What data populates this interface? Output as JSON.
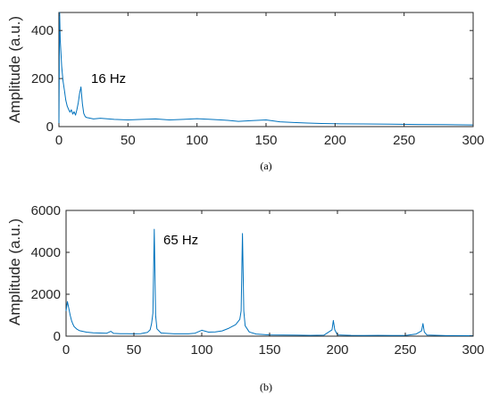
{
  "style": {
    "line_color": "#0072bd",
    "axis_color": "#262626",
    "background": "#ffffff"
  },
  "chart_data": [
    {
      "panel": "(a)",
      "type": "line",
      "title": "",
      "xlabel": "",
      "ylabel": "Amplitude (a.u.)",
      "xlim": [
        0,
        300
      ],
      "ylim": [
        0,
        475
      ],
      "xticks": [
        0,
        50,
        100,
        150,
        200,
        250,
        300
      ],
      "yticks": [
        0,
        200,
        400
      ],
      "grid": false,
      "annotations": [
        {
          "text": "16 Hz",
          "x": 20,
          "y": 195
        }
      ],
      "series": [
        {
          "points": [
            [
              0,
              0
            ],
            [
              0.5,
              475
            ],
            [
              1,
              360
            ],
            [
              2,
              250
            ],
            [
              3,
              190
            ],
            [
              4,
              150
            ],
            [
              5,
              110
            ],
            [
              6,
              85
            ],
            [
              7,
              72
            ],
            [
              8,
              60
            ],
            [
              9,
              70
            ],
            [
              10,
              52
            ],
            [
              11,
              62
            ],
            [
              12,
              48
            ],
            [
              13,
              70
            ],
            [
              14,
              100
            ],
            [
              15,
              140
            ],
            [
              16,
              165
            ],
            [
              17,
              95
            ],
            [
              18,
              55
            ],
            [
              19,
              42
            ],
            [
              20,
              38
            ],
            [
              25,
              32
            ],
            [
              30,
              35
            ],
            [
              40,
              30
            ],
            [
              50,
              28
            ],
            [
              60,
              30
            ],
            [
              70,
              32
            ],
            [
              80,
              28
            ],
            [
              90,
              30
            ],
            [
              100,
              33
            ],
            [
              110,
              30
            ],
            [
              120,
              27
            ],
            [
              130,
              22
            ],
            [
              140,
              25
            ],
            [
              150,
              28
            ],
            [
              160,
              20
            ],
            [
              170,
              17
            ],
            [
              180,
              15
            ],
            [
              190,
              13
            ],
            [
              200,
              12
            ],
            [
              220,
              11
            ],
            [
              240,
              10
            ],
            [
              260,
              9
            ],
            [
              280,
              8
            ],
            [
              300,
              7
            ]
          ]
        }
      ]
    },
    {
      "panel": "(b)",
      "type": "line",
      "title": "",
      "xlabel": "",
      "ylabel": "Amplitude (a.u.)",
      "xlim": [
        0,
        300
      ],
      "ylim": [
        0,
        6000
      ],
      "xticks": [
        0,
        50,
        100,
        150,
        200,
        250,
        300
      ],
      "yticks": [
        0,
        2000,
        4000,
        6000
      ],
      "grid": false,
      "annotations": [
        {
          "text": "65 Hz",
          "x": 70,
          "y": 4500
        }
      ],
      "series": [
        {
          "points": [
            [
              0,
              1200
            ],
            [
              1,
              1650
            ],
            [
              2,
              1350
            ],
            [
              3,
              1000
            ],
            [
              4,
              750
            ],
            [
              5,
              580
            ],
            [
              6,
              450
            ],
            [
              8,
              330
            ],
            [
              10,
              260
            ],
            [
              15,
              190
            ],
            [
              20,
              160
            ],
            [
              25,
              150
            ],
            [
              30,
              140
            ],
            [
              33,
              230
            ],
            [
              35,
              130
            ],
            [
              40,
              120
            ],
            [
              45,
              115
            ],
            [
              50,
              110
            ],
            [
              55,
              120
            ],
            [
              60,
              180
            ],
            [
              62,
              300
            ],
            [
              63,
              600
            ],
            [
              64,
              1100
            ],
            [
              65,
              5100
            ],
            [
              66,
              1000
            ],
            [
              67,
              350
            ],
            [
              70,
              150
            ],
            [
              80,
              110
            ],
            [
              90,
              110
            ],
            [
              95,
              140
            ],
            [
              100,
              280
            ],
            [
              105,
              190
            ],
            [
              110,
              200
            ],
            [
              115,
              250
            ],
            [
              120,
              380
            ],
            [
              125,
              550
            ],
            [
              128,
              800
            ],
            [
              129,
              1200
            ],
            [
              130,
              4900
            ],
            [
              131,
              1200
            ],
            [
              132,
              500
            ],
            [
              135,
              200
            ],
            [
              140,
              100
            ],
            [
              150,
              60
            ],
            [
              160,
              50
            ],
            [
              170,
              45
            ],
            [
              180,
              40
            ],
            [
              190,
              45
            ],
            [
              196,
              300
            ],
            [
              197,
              750
            ],
            [
              198,
              300
            ],
            [
              200,
              60
            ],
            [
              210,
              40
            ],
            [
              220,
              35
            ],
            [
              230,
              40
            ],
            [
              240,
              30
            ],
            [
              250,
              30
            ],
            [
              258,
              100
            ],
            [
              262,
              250
            ],
            [
              263,
              600
            ],
            [
              264,
              200
            ],
            [
              266,
              50
            ],
            [
              280,
              25
            ],
            [
              300,
              20
            ]
          ]
        }
      ]
    }
  ]
}
